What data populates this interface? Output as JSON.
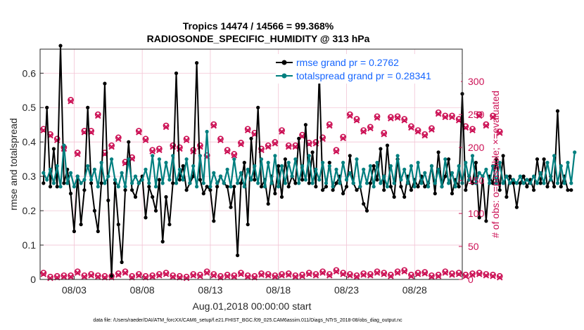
{
  "chart_data": {
    "type": "line",
    "title": "Tropics 14474 / 14566 = 99.368%",
    "subtitle": "RADIOSONDE_SPECIFIC_HUMIDITY @ 313 hPa",
    "xlabel": "Aug.01,2018 00:00:00 start",
    "ylabel": "rmse and totalspread",
    "ylabel_right": "# of obs: o=possible; ×=evaluated",
    "footnote": "data file: /Users/raeder/DAI/ATM_forcXX/CAM6_setup/f.e21.FHIST_BGC.f09_025.CAM6assim.011/Diags_NTrS_2018-08/obs_diag_output.nc",
    "x_range_days": [
      0.5,
      31.5
    ],
    "ylim": [
      0,
      0.67
    ],
    "ylim_right": [
      0,
      349
    ],
    "yticks": [
      "0",
      "0.1",
      "0.2",
      "0.3",
      "0.4",
      "0.5",
      "0.6"
    ],
    "yticks_right": [
      "0",
      "50",
      "100",
      "150",
      "200",
      "250",
      "300"
    ],
    "xticks": [
      {
        "day": 3,
        "label": "08/03"
      },
      {
        "day": 8,
        "label": "08/08"
      },
      {
        "day": 13,
        "label": "08/13"
      },
      {
        "day": 18,
        "label": "08/18"
      },
      {
        "day": 23,
        "label": "08/23"
      },
      {
        "day": 28,
        "label": "08/28"
      }
    ],
    "x_step_days": 0.25,
    "x_start_day": 0.75,
    "series": [
      {
        "name": "rmse grand pr = 0.2762",
        "color": "#000000",
        "marker": "dot",
        "values": [
          0.28,
          0.5,
          0.27,
          0.38,
          0.27,
          0.68,
          0.28,
          0.32,
          0.25,
          0.14,
          0.3,
          0.16,
          0.26,
          0.5,
          0.28,
          0.2,
          0.14,
          0.28,
          0.57,
          0.23,
          0.01,
          0.28,
          0.16,
          0.05,
          0.26,
          0.4,
          0.26,
          0.24,
          0.28,
          0.3,
          0.18,
          0.27,
          0.24,
          0.2,
          0.29,
          0.11,
          0.24,
          0.16,
          0.28,
          0.6,
          0.29,
          0.33,
          0.26,
          0.28,
          0.3,
          0.63,
          0.29,
          0.25,
          0.27,
          0.26,
          0.17,
          0.27,
          0.3,
          0.28,
          0.27,
          0.21,
          0.27,
          0.07,
          0.28,
          0.34,
          0.16,
          0.41,
          0.29,
          0.5,
          0.27,
          0.29,
          0.22,
          0.3,
          0.25,
          0.33,
          0.24,
          0.35,
          0.27,
          0.3,
          0.28,
          0.41,
          0.29,
          0.45,
          0.28,
          0.37,
          0.27,
          0.6,
          0.26,
          0.27,
          0.34,
          0.26,
          0.28,
          0.3,
          0.25,
          0.27,
          0.36,
          0.28,
          0.26,
          0.27,
          0.22,
          0.2,
          0.28,
          0.33,
          0.29,
          0.38,
          0.26,
          0.39,
          0.27,
          0.24,
          0.35,
          0.27,
          0.24,
          0.3,
          0.26,
          0.29,
          0.27,
          0.3,
          0.27,
          0.28,
          0.33,
          0.25,
          0.37,
          0.27,
          0.3,
          0.35,
          0.25,
          0.29,
          0.27,
          0.54,
          0.26,
          0.3,
          0.28,
          0.34,
          0.18,
          0.3,
          0.17,
          0.3,
          0.28,
          0.35,
          0.26,
          0.36,
          0.24,
          0.3,
          0.28,
          0.21,
          0.28,
          0.3,
          0.27,
          0.29,
          0.26,
          0.35,
          0.28,
          0.35,
          0.27,
          0.3,
          0.27,
          0.49,
          0.27,
          0.3,
          0.26,
          0.26
        ]
      },
      {
        "name": "totalspread grand pr = 0.28341",
        "color": "#007f7f",
        "marker": "dot",
        "values": [
          0.31,
          0.29,
          0.32,
          0.28,
          0.33,
          0.27,
          0.39,
          0.28,
          0.31,
          0.27,
          0.3,
          0.28,
          0.29,
          0.33,
          0.29,
          0.32,
          0.27,
          0.34,
          0.28,
          0.3,
          0.35,
          0.29,
          0.27,
          0.31,
          0.27,
          0.35,
          0.28,
          0.3,
          0.28,
          0.29,
          0.32,
          0.28,
          0.36,
          0.27,
          0.35,
          0.28,
          0.34,
          0.29,
          0.36,
          0.28,
          0.32,
          0.29,
          0.35,
          0.28,
          0.33,
          0.27,
          0.36,
          0.28,
          0.43,
          0.27,
          0.31,
          0.28,
          0.3,
          0.28,
          0.32,
          0.27,
          0.35,
          0.28,
          0.31,
          0.27,
          0.32,
          0.29,
          0.33,
          0.28,
          0.35,
          0.27,
          0.34,
          0.28,
          0.36,
          0.27,
          0.33,
          0.28,
          0.34,
          0.3,
          0.35,
          0.28,
          0.33,
          0.29,
          0.36,
          0.28,
          0.32,
          0.29,
          0.34,
          0.28,
          0.33,
          0.27,
          0.32,
          0.28,
          0.34,
          0.29,
          0.31,
          0.28,
          0.35,
          0.27,
          0.32,
          0.28,
          0.33,
          0.27,
          0.34,
          0.28,
          0.3,
          0.27,
          0.33,
          0.28,
          0.36,
          0.29,
          0.32,
          0.28,
          0.33,
          0.27,
          0.34,
          0.28,
          0.31,
          0.27,
          0.33,
          0.28,
          0.32,
          0.27,
          0.35,
          0.28,
          0.31,
          0.27,
          0.33,
          0.28,
          0.34,
          0.29,
          0.36,
          0.28,
          0.31,
          0.3,
          0.32,
          0.28,
          0.33,
          0.28,
          0.34,
          0.28,
          0.3,
          0.28,
          0.29,
          0.28,
          0.3,
          0.28,
          0.29,
          0.28,
          0.3,
          0.28,
          0.31,
          0.28,
          0.34,
          0.29,
          0.36,
          0.28,
          0.33,
          0.28,
          0.34,
          0.28,
          0.37
        ]
      }
    ],
    "obs_counts": {
      "color": "#cc1155",
      "x_start_day": 0.75,
      "x_step_days": 0.5,
      "possible_high": [
        228,
        220,
        213,
        200,
        272,
        192,
        225,
        225,
        250,
        192,
        203,
        215,
        178,
        185,
        225,
        213,
        196,
        198,
        233,
        203,
        200,
        213,
        196,
        203,
        188,
        235,
        213,
        196,
        190,
        207,
        228,
        222,
        198,
        203,
        208,
        226,
        203,
        203,
        219,
        207,
        208,
        215,
        235,
        196,
        216,
        250,
        243,
        226,
        231,
        247,
        222,
        246,
        247,
        243,
        232,
        226,
        220,
        229,
        253,
        248,
        248,
        243,
        232,
        228,
        250,
        235,
        248,
        224
      ],
      "evaluated_high": [
        226,
        218,
        211,
        198,
        270,
        190,
        223,
        223,
        248,
        190,
        201,
        213,
        176,
        183,
        223,
        211,
        194,
        196,
        231,
        201,
        198,
        211,
        194,
        201,
        186,
        233,
        211,
        194,
        188,
        205,
        226,
        220,
        196,
        201,
        206,
        224,
        201,
        201,
        217,
        205,
        206,
        213,
        233,
        194,
        214,
        248,
        241,
        224,
        229,
        245,
        220,
        244,
        245,
        241,
        230,
        224,
        218,
        227,
        251,
        246,
        246,
        241,
        230,
        226,
        248,
        233,
        246,
        222
      ],
      "possible_low": [
        10,
        4,
        5,
        6,
        6,
        12,
        6,
        8,
        6,
        5,
        5,
        9,
        12,
        5,
        8,
        5,
        6,
        8,
        10,
        6,
        5,
        4,
        8,
        7,
        12,
        8,
        5,
        7,
        6,
        10,
        6,
        5,
        9,
        8,
        6,
        8,
        9,
        6,
        7,
        10,
        8,
        12,
        8,
        14,
        10,
        8,
        6,
        9,
        8,
        12,
        10,
        7,
        12,
        14,
        7,
        10,
        11,
        6,
        7,
        12,
        9,
        10,
        7,
        9,
        10,
        8,
        7,
        5
      ],
      "evaluated_low": [
        8,
        2,
        3,
        4,
        4,
        10,
        4,
        6,
        4,
        3,
        3,
        7,
        10,
        3,
        6,
        3,
        4,
        6,
        8,
        4,
        3,
        2,
        6,
        5,
        10,
        6,
        3,
        5,
        4,
        8,
        4,
        3,
        7,
        6,
        4,
        6,
        7,
        4,
        5,
        8,
        6,
        10,
        6,
        12,
        8,
        6,
        4,
        7,
        6,
        10,
        8,
        5,
        10,
        12,
        5,
        8,
        9,
        4,
        5,
        10,
        7,
        8,
        5,
        7,
        8,
        6,
        5,
        3
      ]
    }
  }
}
